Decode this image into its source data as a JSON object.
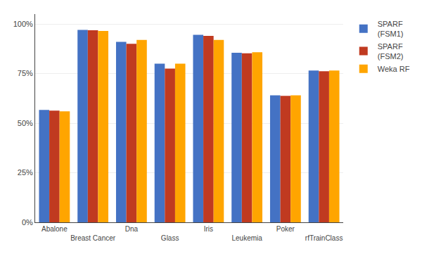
{
  "chart_data": {
    "type": "bar",
    "categories": [
      "Abalone",
      "Breast Cancer",
      "Dna",
      "Glass",
      "Iris",
      "Leukemia",
      "Poker",
      "rfTrainClass"
    ],
    "series": [
      {
        "name": "SPARF\n(FSM1)",
        "color": "#4472C4",
        "values": [
          0.567,
          0.97,
          0.91,
          0.8,
          0.945,
          0.855,
          0.64,
          0.765
        ]
      },
      {
        "name": "SPARF\n(FSM2)",
        "color": "#C03A20",
        "values": [
          0.563,
          0.968,
          0.9,
          0.775,
          0.94,
          0.852,
          0.638,
          0.762
        ]
      },
      {
        "name": "Weka RF",
        "color": "#FFA500",
        "values": [
          0.56,
          0.965,
          0.92,
          0.8,
          0.92,
          0.858,
          0.64,
          0.765
        ]
      }
    ],
    "ylim": [
      0,
      1.05
    ],
    "yticks": [
      {
        "value": 0,
        "label": "0%"
      },
      {
        "value": 0.25,
        "label": "25%"
      },
      {
        "value": 0.5,
        "label": "50%"
      },
      {
        "value": 0.75,
        "label": "75%"
      },
      {
        "value": 1.0,
        "label": "100%"
      }
    ],
    "grid": true,
    "legend": "upper right"
  }
}
